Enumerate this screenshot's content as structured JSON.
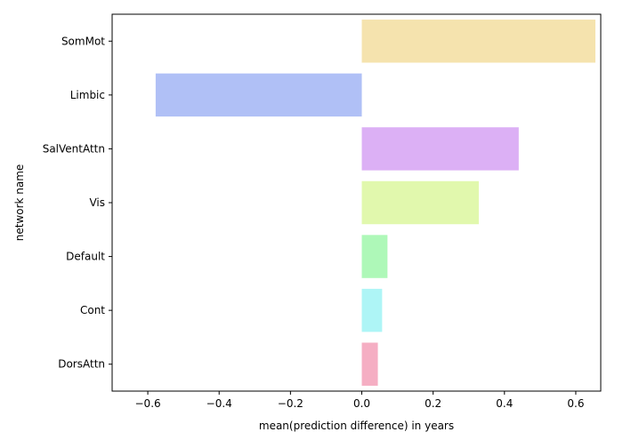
{
  "chart_data": {
    "type": "bar",
    "orientation": "horizontal",
    "xlabel": "mean(prediction difference) in years",
    "ylabel": "network name",
    "xlim": [
      -0.7,
      0.67
    ],
    "xticks": [
      -0.6,
      -0.4,
      -0.2,
      0.0,
      0.2,
      0.4,
      0.6
    ],
    "xtick_labels": [
      "−0.6",
      "−0.4",
      "−0.2",
      "0.0",
      "0.2",
      "0.4",
      "0.6"
    ],
    "grid": false,
    "categories": [
      "SomMot",
      "Limbic",
      "SalVentAttn",
      "Vis",
      "Default",
      "Cont",
      "DorsAttn"
    ],
    "values": [
      0.655,
      -0.578,
      0.44,
      0.328,
      0.072,
      0.057,
      0.045
    ],
    "colors": [
      "#f5e3ae",
      "#b0c0f6",
      "#dcb0f5",
      "#e1f8ad",
      "#aef8b8",
      "#aef5f6",
      "#f5aec3"
    ]
  }
}
